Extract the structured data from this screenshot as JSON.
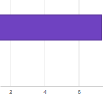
{
  "chart_data": {
    "type": "bar",
    "orientation": "horizontal",
    "categories": [
      null
    ],
    "values": [
      7.3
    ],
    "color": "#6f42c1",
    "xlim": [
      1.4,
      7.4
    ],
    "xticks": [
      2,
      4,
      6
    ],
    "grid": true,
    "tick_labels": "x"
  }
}
